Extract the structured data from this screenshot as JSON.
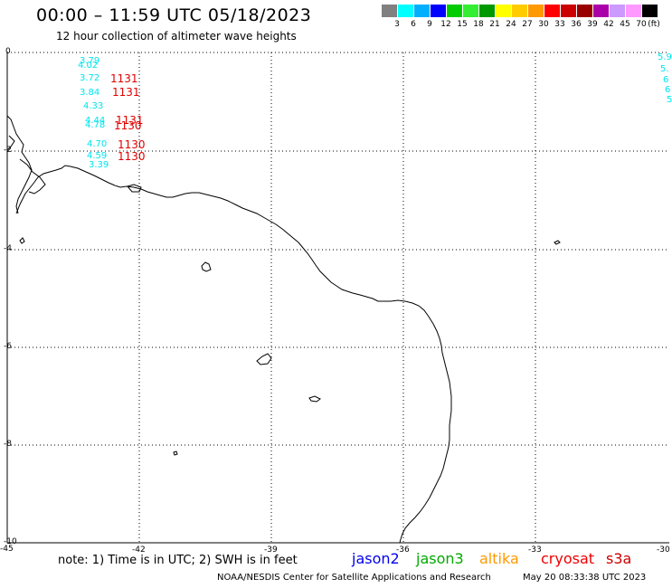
{
  "header": {
    "title": "00:00 – 11:59 UTC 05/18/2023",
    "subtitle": "12 hour collection of altimeter wave heights"
  },
  "legend": {
    "unit": "(ft)",
    "bins": [
      {
        "label": "3",
        "color": "#808080"
      },
      {
        "label": "6",
        "color": "#00ffff"
      },
      {
        "label": "9",
        "color": "#00b0ff"
      },
      {
        "label": "12",
        "color": "#0000ff"
      },
      {
        "label": "15",
        "color": "#00cc00"
      },
      {
        "label": "18",
        "color": "#33ee33"
      },
      {
        "label": "21",
        "color": "#009900"
      },
      {
        "label": "24",
        "color": "#ffff00"
      },
      {
        "label": "27",
        "color": "#ffcc00"
      },
      {
        "label": "30",
        "color": "#ff9900"
      },
      {
        "label": "33",
        "color": "#ff0000"
      },
      {
        "label": "36",
        "color": "#cc0000"
      },
      {
        "label": "39",
        "color": "#990000"
      },
      {
        "label": "42",
        "color": "#aa00aa"
      },
      {
        "label": "45",
        "color": "#cc99ff"
      },
      {
        "label": "70",
        "color": "#ff99ff"
      },
      {
        "label": "",
        "color": "#000000"
      }
    ]
  },
  "axes": {
    "lon_ticks": [
      "-45",
      "-42",
      "-39",
      "-36",
      "-33",
      "-30"
    ],
    "lat_ticks": [
      "0",
      "-2",
      "-4",
      "-6",
      "-8",
      "-10"
    ]
  },
  "observations": [
    {
      "value": "3.79",
      "color": "#00e5ee"
    },
    {
      "value": "4.02",
      "color": "#00e5ee"
    },
    {
      "value": "3.72",
      "color": "#00e5ee"
    },
    {
      "value": "3.84",
      "color": "#00e5ee"
    },
    {
      "value": "4.33",
      "color": "#00e5ee"
    },
    {
      "value": "4.44",
      "color": "#00e5ee"
    },
    {
      "value": "4.78",
      "color": "#00e5ee"
    },
    {
      "value": "4.70",
      "color": "#00e5ee"
    },
    {
      "value": "4.59",
      "color": "#00e5ee"
    },
    {
      "value": "3.39",
      "color": "#00e5ee"
    },
    {
      "value": "5.9",
      "color": "#00e5ee"
    },
    {
      "value": "5.",
      "color": "#00e5ee"
    },
    {
      "value": "6",
      "color": "#00e5ee"
    },
    {
      "value": "6",
      "color": "#00e5ee"
    },
    {
      "value": "5",
      "color": "#00e5ee"
    }
  ],
  "pass_times": [
    "1131",
    "1131",
    "1131",
    "1130",
    "1130",
    "1130"
  ],
  "footer": {
    "note": "note: 1) Time is in UTC; 2) SWH is in feet",
    "satellites": [
      {
        "name": "jason2",
        "color": "#0000ee"
      },
      {
        "name": "jason3",
        "color": "#00aa00"
      },
      {
        "name": "altika",
        "color": "#ff9900"
      },
      {
        "name": "cryosat",
        "color": "#ee0000"
      },
      {
        "name": "s3a",
        "color": "#cc0000"
      }
    ],
    "credit": "NOAA/NESDIS Center for Satellite Applications and Research",
    "timestamp": "May 20 08:33:38 UTC 2023"
  }
}
